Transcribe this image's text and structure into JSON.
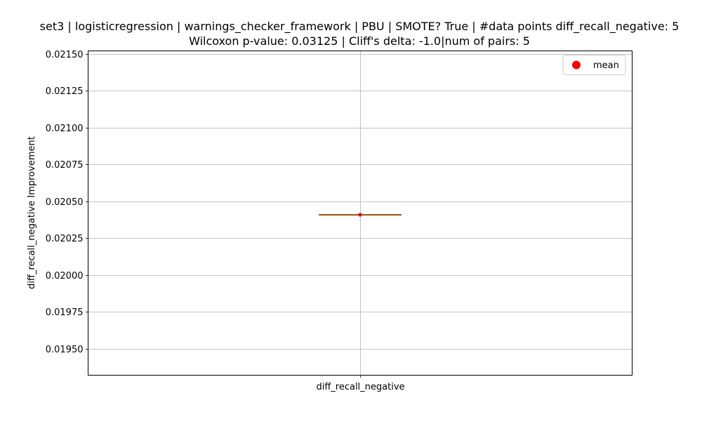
{
  "chart_data": {
    "type": "box",
    "title_line1": "set3 | logisticregression | warnings_checker_framework | PBU | SMOTE? True | #data points diff_recall_negative: 5",
    "title_line2": "Wilcoxon p-value: 0.03125 | Cliff's delta: -1.0|num of pairs: 5",
    "xlabel": "",
    "ylabel": "diff_recall_negative Improvement",
    "categories": [
      "diff_recall_negative"
    ],
    "ylim": [
      0.01932,
      0.02152
    ],
    "yticks": [
      0.0195,
      0.01975,
      0.02,
      0.02025,
      0.0205,
      0.02075,
      0.021,
      0.02125,
      0.0215
    ],
    "ytick_labels": [
      "0.01950",
      "0.01975",
      "0.02000",
      "0.02025",
      "0.02050",
      "0.02075",
      "0.02100",
      "0.02125",
      "0.02150"
    ],
    "grid": true,
    "legend": {
      "position": "upper right",
      "entries": [
        {
          "label": "mean",
          "color": "#ff0000",
          "marker": "circle"
        }
      ]
    },
    "series": [
      {
        "category": "diff_recall_negative",
        "min": 0.020408,
        "q1": 0.020408,
        "median": 0.020408,
        "q3": 0.020408,
        "max": 0.020408,
        "mean": 0.020408,
        "box_color": "#1f77b4",
        "median_color": "#ff7f0e",
        "mean_color": "#ff0000"
      }
    ]
  }
}
